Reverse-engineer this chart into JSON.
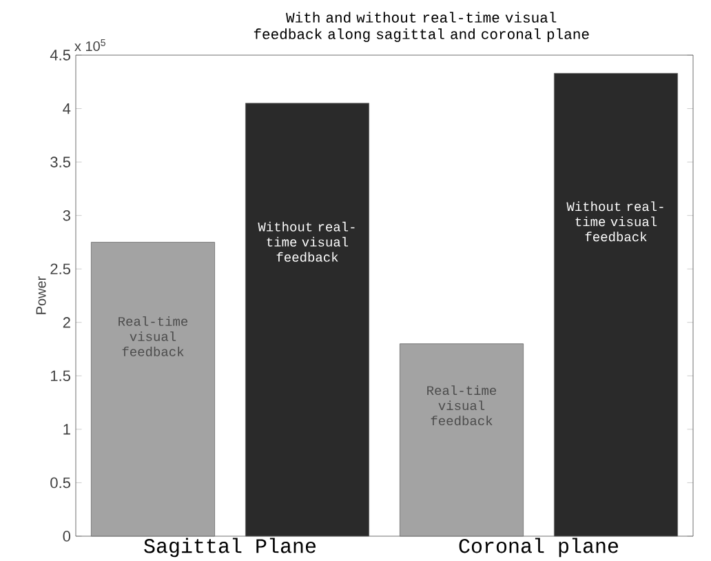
{
  "chart_data": {
    "type": "bar",
    "title": "With and without real-time visual feedback along sagittal and coronal plane",
    "ylabel": "Power",
    "annotations": [
      "x 10$^{5}$"
    ],
    "categories": [
      "Sagittal Plane",
      "Coronal plane"
    ],
    "series": [
      {
        "name": "Real-time visual feedback",
        "color": "#a3a3a3",
        "values": [
          2.75,
          1.8
        ]
      },
      {
        "name": "Without real-time visual feedback",
        "color": "#2a2a2a",
        "values": [
          4.05,
          4.33
        ]
      }
    ],
    "ylim": [
      0,
      4.5
    ],
    "yticks": [
      0,
      0.5,
      1,
      1.5,
      2,
      2.5,
      3,
      3.5,
      4,
      4.5
    ]
  }
}
